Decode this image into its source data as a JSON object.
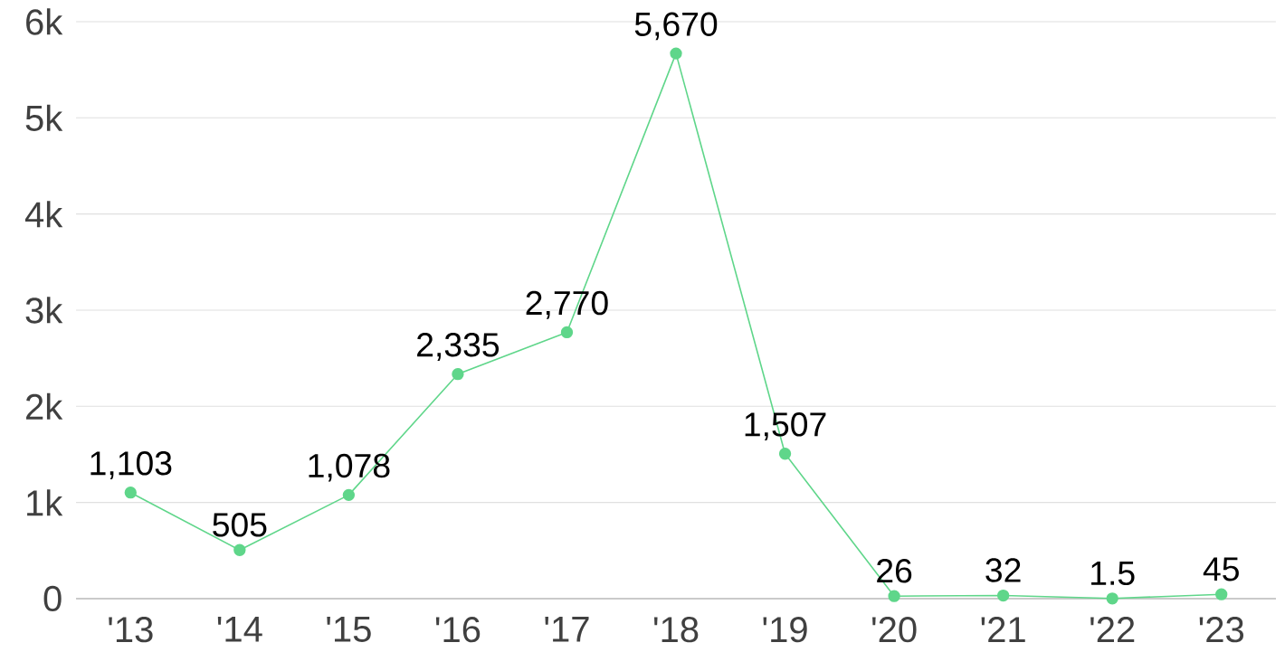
{
  "chart_data": {
    "type": "line",
    "categories": [
      "'13",
      "'14",
      "'15",
      "'16",
      "'17",
      "'18",
      "'19",
      "'20",
      "'21",
      "'22",
      "'23"
    ],
    "values": [
      1103,
      505,
      1078,
      2335,
      2770,
      5670,
      1507,
      26,
      32,
      1.5,
      45
    ],
    "value_labels": [
      "1,103",
      "505",
      "1,078",
      "2,335",
      "2,770",
      "5,670",
      "1,507",
      "26",
      "32",
      "1.5",
      "45"
    ],
    "color": "#5fd68a",
    "marker": "circle",
    "line_style": "solid",
    "grid": "y",
    "ylim": [
      0,
      6000
    ],
    "yticks": [
      0,
      {
        "value": 1000,
        "label": "1k"
      },
      {
        "value": 2000,
        "label": "2k"
      },
      {
        "value": 3000,
        "label": "3k"
      },
      {
        "value": 4000,
        "label": "4k"
      },
      {
        "value": 5000,
        "label": "5k"
      },
      {
        "value": 6000,
        "label": "6k"
      }
    ]
  }
}
